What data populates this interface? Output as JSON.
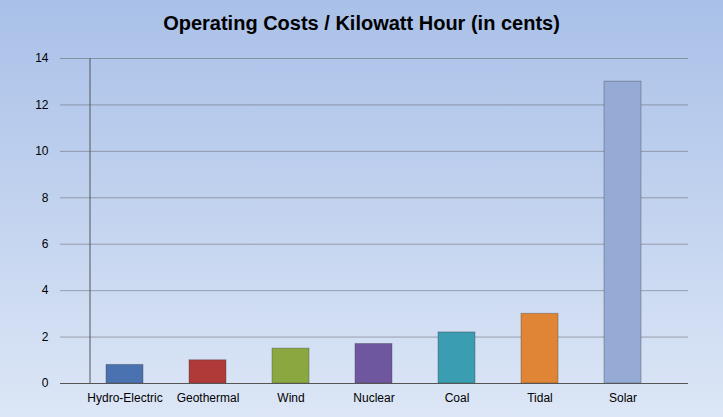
{
  "chart_data": {
    "type": "bar",
    "title": "Operating Costs / Kilowatt Hour (in cents)",
    "categories": [
      "Hydro-Electric",
      "Geothermal",
      "Wind",
      "Nuclear",
      "Coal",
      "Tidal",
      "Solar"
    ],
    "values": [
      0.8,
      1.0,
      1.5,
      1.7,
      2.2,
      3.0,
      13.0
    ],
    "colors": [
      "#4a72b0",
      "#b03a37",
      "#8aa83f",
      "#6f57a0",
      "#3a9db1",
      "#e08535",
      "#95abd6"
    ],
    "ylim": [
      0,
      14
    ],
    "yticks": [
      0,
      2,
      4,
      6,
      8,
      10,
      12,
      14
    ],
    "grid": true
  }
}
